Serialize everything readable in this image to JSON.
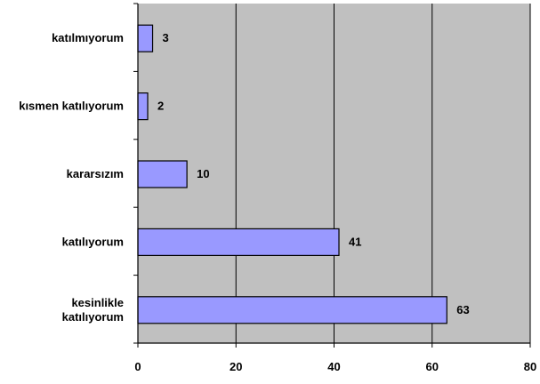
{
  "chart_data": {
    "type": "bar",
    "orientation": "horizontal",
    "categories": [
      [
        "katılmıyorum"
      ],
      [
        "kısmen katılıyorum"
      ],
      [
        "kararsızım"
      ],
      [
        "katılıyorum"
      ],
      [
        "kesinlikle",
        "katılıyorum"
      ]
    ],
    "values": [
      3,
      2,
      10,
      41,
      63
    ],
    "data_labels": [
      "3",
      "2",
      "10",
      "41",
      "63"
    ],
    "x_ticks": [
      0,
      20,
      40,
      60,
      80
    ],
    "x_tick_labels": [
      "0",
      "20",
      "40",
      "60",
      "80"
    ],
    "xlim": [
      0,
      80
    ],
    "title": "",
    "xlabel": "",
    "ylabel": "",
    "grid": "vertical",
    "legend": "none"
  },
  "colors": {
    "bar_fill": "#9999FF",
    "bar_stroke": "#000000",
    "plot_background": "#C0C0C0",
    "grid_line": "#000000",
    "axis_line": "#000000"
  }
}
